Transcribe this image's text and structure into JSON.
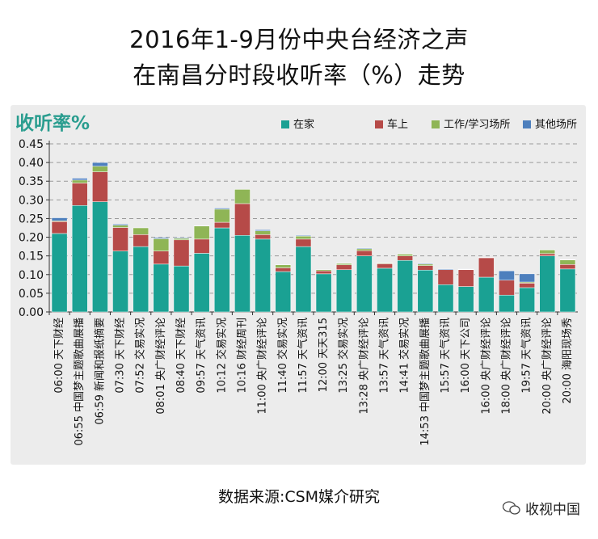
{
  "title_line1": "2016年1-9月份中央台经济之声",
  "title_line2": "在南昌分时段收听率（%）走势",
  "source": "数据来源:CSM媒介研究",
  "watermark": "收视中国",
  "chart_data": {
    "type": "bar",
    "stacked": true,
    "title": "收听率%",
    "ylabel": "收听率%",
    "xlabel": "",
    "ylim": [
      0,
      0.45
    ],
    "yticks": [
      "0.00",
      "0.05",
      "0.10",
      "0.15",
      "0.20",
      "0.25",
      "0.30",
      "0.35",
      "0.40",
      "0.45"
    ],
    "grid": true,
    "legend_position": "top-right",
    "categories": [
      "06:00 天下财经",
      "06:55 中国梦主题歌曲展播",
      "06:59 新闻和报纸摘要",
      "07:30 天下财经",
      "07:52 交易实况",
      "08:01 央广财经评论",
      "08:40 天下财经",
      "09:57 天气资讯",
      "10:12 交易实况",
      "10:16 财经周刊",
      "11:00 央广财经评论",
      "11:40 交易实况",
      "11:57 天气资讯",
      "12:00 天天315",
      "13:25 交易实况",
      "13:28 央广财经评论",
      "13:57 天气资讯",
      "14:41 交易实况",
      "14:53 中国梦主题歌曲展播",
      "15:57 天气资讯",
      "16:00 天下公司",
      "16:00 央广财经评论",
      "18:00 央广财经评论",
      "19:57 天气资讯",
      "20:00 央广财经评论",
      "20:00 海阳现场秀"
    ],
    "series": [
      {
        "name": "在家",
        "color": "#1aa193",
        "values": [
          0.21,
          0.285,
          0.295,
          0.163,
          0.175,
          0.128,
          0.123,
          0.157,
          0.225,
          0.205,
          0.195,
          0.108,
          0.175,
          0.102,
          0.113,
          0.15,
          0.117,
          0.138,
          0.112,
          0.073,
          0.068,
          0.093,
          0.045,
          0.065,
          0.15,
          0.115
        ]
      },
      {
        "name": "车上",
        "color": "#b64a48",
        "values": [
          0.032,
          0.06,
          0.08,
          0.063,
          0.032,
          0.035,
          0.07,
          0.038,
          0.015,
          0.085,
          0.012,
          0.01,
          0.02,
          0.008,
          0.013,
          0.014,
          0.012,
          0.012,
          0.012,
          0.04,
          0.045,
          0.052,
          0.04,
          0.012,
          0.006,
          0.012
        ]
      },
      {
        "name": "工作/学习场所",
        "color": "#8fb556",
        "values": [
          0.002,
          0.008,
          0.015,
          0.006,
          0.018,
          0.033,
          0.004,
          0.035,
          0.035,
          0.038,
          0.01,
          0.008,
          0.008,
          0.003,
          0.004,
          0.005,
          0.002,
          0.005,
          0.004,
          0.0,
          0.001,
          0.001,
          0.0,
          0.003,
          0.01,
          0.012
        ]
      },
      {
        "name": "其他场所",
        "color": "#4d7fbd",
        "values": [
          0.008,
          0.005,
          0.01,
          0.003,
          0.0,
          0.003,
          0.002,
          0.001,
          0.003,
          0.0,
          0.003,
          0.0,
          0.002,
          0.0,
          0.001,
          0.002,
          0.001,
          0.001,
          0.002,
          0.002,
          0.001,
          0.0,
          0.025,
          0.022,
          0.001,
          0.001
        ]
      }
    ]
  }
}
